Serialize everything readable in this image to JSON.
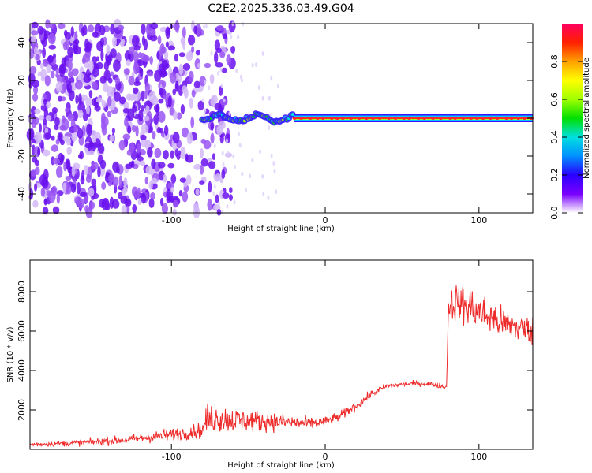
{
  "figure": {
    "title": "C2E2.2025.336.03.49.G04"
  },
  "chart_data": [
    {
      "type": "heatmap",
      "name": "spectrogram",
      "xlabel": "Height of straight line (km)",
      "ylabel": "Frequency (Hz)",
      "xlim": [
        -192,
        135
      ],
      "ylim": [
        -50,
        50
      ],
      "x_tick_labels": [
        "-100",
        "0",
        "100"
      ],
      "x_ticks": [
        -100,
        0,
        100
      ],
      "y_tick_labels": [
        "-40",
        "-20",
        "0",
        "20",
        "40"
      ],
      "y_ticks": [
        -40,
        -20,
        0,
        20,
        40
      ],
      "colorbar": {
        "label": "Normalized spectral amplitude",
        "range": [
          0,
          1
        ],
        "tick_labels": [
          "0.0",
          "0.2",
          "0.4",
          "0.6",
          "0.8"
        ],
        "ticks": [
          0.0,
          0.2,
          0.4,
          0.6,
          0.8
        ],
        "colormap": [
          "#ffffff",
          "#7a00ff",
          "#2a00ff",
          "#0090ff",
          "#00e0e0",
          "#00e000",
          "#a0ff00",
          "#ffff00",
          "#ffa000",
          "#ff2000",
          "#ff0060"
        ]
      },
      "features": {
        "noise_region_x": [
          -192,
          -80
        ],
        "signal_line_frequency": 0,
        "signal_start_x": -80,
        "strong_signal_start_x": -20,
        "signal_color": "#ff2a2a",
        "noise_color": "#7a20ff"
      },
      "grid": false,
      "legend": "none"
    },
    {
      "type": "line",
      "name": "snr",
      "xlabel": "Height of straight line (km)",
      "ylabel": "SNR (10 * v/v)",
      "xlim": [
        -192,
        135
      ],
      "ylim": [
        0,
        9600
      ],
      "x_tick_labels": [
        "-100",
        "0",
        "100"
      ],
      "x_ticks": [
        -100,
        0,
        100
      ],
      "y_tick_labels": [
        "2000",
        "4000",
        "6000",
        "8000"
      ],
      "y_ticks": [
        2000,
        4000,
        6000,
        8000
      ],
      "line_color": "#ee2a2a",
      "series": [
        {
          "x": [
            -192,
            -170,
            -150,
            -130,
            -110,
            -90,
            -79,
            -78,
            -70,
            -60,
            -50,
            -40,
            -30,
            -20,
            -10,
            0,
            10,
            20,
            30,
            40,
            50,
            60,
            70,
            79,
            80,
            85,
            95,
            105,
            115,
            125,
            135
          ],
          "y_mean": [
            250,
            300,
            380,
            480,
            650,
            850,
            1000,
            1500,
            1600,
            1500,
            1450,
            1450,
            1400,
            1350,
            1300,
            1400,
            1700,
            2200,
            2800,
            3200,
            3300,
            3350,
            3300,
            3150,
            7300,
            7500,
            7200,
            6800,
            6400,
            6200,
            6000
          ],
          "y_spread": [
            180,
            220,
            280,
            350,
            450,
            550,
            650,
            1200,
            1200,
            1000,
            900,
            800,
            700,
            600,
            500,
            400,
            400,
            350,
            300,
            250,
            200,
            200,
            200,
            200,
            1400,
            1500,
            1600,
            1500,
            1300,
            1200,
            1100
          ]
        }
      ],
      "grid": false,
      "legend": "none"
    }
  ]
}
